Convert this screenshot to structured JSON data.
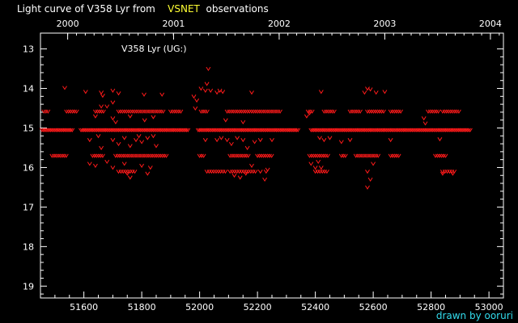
{
  "title": {
    "prefix": "Light curve of V358 Lyr from",
    "highlight": "VSNET",
    "suffix": "observations",
    "highlight_color": "#ffff33"
  },
  "credit": "drawn by ooruri",
  "chart_data": {
    "type": "scatter",
    "marker": "v",
    "point_color": "#ff1a1a",
    "annotation": "V358 Lyr (UG:)",
    "xlim": [
      51450,
      53050
    ],
    "ylim": [
      19.3,
      12.6
    ],
    "y_inverted": true,
    "grid": false,
    "x_ticks": [
      51600,
      51800,
      52000,
      52200,
      52400,
      52600,
      52800,
      53000
    ],
    "y_ticks": [
      13,
      14,
      15,
      16,
      17,
      18,
      19
    ],
    "top_axis": {
      "label_ticks": [
        {
          "label": "2000",
          "x": 51544
        },
        {
          "label": "2001",
          "x": 51910
        },
        {
          "label": "2002",
          "x": 52275
        },
        {
          "label": "2003",
          "x": 52640
        },
        {
          "label": "2004",
          "x": 53005
        }
      ]
    },
    "bands": [
      {
        "y": 15.05,
        "ranges": [
          [
            51455,
            51560
          ],
          [
            51590,
            51960
          ],
          [
            51995,
            52340
          ],
          [
            52385,
            52935
          ]
        ],
        "step": 5
      },
      {
        "y": 14.58,
        "ranges": [
          [
            51462,
            51478
          ],
          [
            51540,
            51580
          ],
          [
            51640,
            51670
          ],
          [
            51720,
            51880
          ],
          [
            51900,
            51935
          ],
          [
            52005,
            52030
          ],
          [
            52095,
            52175
          ],
          [
            52180,
            52280
          ],
          [
            52375,
            52395
          ],
          [
            52430,
            52465
          ],
          [
            52520,
            52560
          ],
          [
            52580,
            52640
          ],
          [
            52660,
            52700
          ],
          [
            52790,
            52830
          ],
          [
            52840,
            52900
          ]
        ],
        "step": 7
      },
      {
        "y": 15.7,
        "ranges": [
          [
            51490,
            51545
          ],
          [
            51630,
            51670
          ],
          [
            51710,
            51890
          ],
          [
            52000,
            52020
          ],
          [
            52105,
            52170
          ],
          [
            52200,
            52250
          ],
          [
            52380,
            52445
          ],
          [
            52490,
            52510
          ],
          [
            52540,
            52620
          ],
          [
            52660,
            52690
          ],
          [
            52815,
            52850
          ]
        ],
        "step": 7
      },
      {
        "y": 16.1,
        "ranges": [
          [
            51720,
            51780
          ],
          [
            52025,
            52090
          ],
          [
            52105,
            52200
          ],
          [
            52400,
            52445
          ],
          [
            52840,
            52880
          ]
        ],
        "step": 8
      }
    ],
    "points": [
      {
        "x": 51534,
        "y": 13.98
      },
      {
        "x": 51606,
        "y": 14.08
      },
      {
        "x": 51660,
        "y": 14.1
      },
      {
        "x": 51665,
        "y": 14.18
      },
      {
        "x": 51700,
        "y": 14.05
      },
      {
        "x": 51720,
        "y": 14.12
      },
      {
        "x": 51808,
        "y": 14.15
      },
      {
        "x": 51870,
        "y": 14.15
      },
      {
        "x": 51660,
        "y": 14.45
      },
      {
        "x": 51680,
        "y": 14.45
      },
      {
        "x": 51700,
        "y": 14.35
      },
      {
        "x": 51990,
        "y": 14.3
      },
      {
        "x": 52005,
        "y": 14.0
      },
      {
        "x": 52020,
        "y": 14.05
      },
      {
        "x": 52025,
        "y": 13.88
      },
      {
        "x": 52030,
        "y": 13.5
      },
      {
        "x": 52038,
        "y": 14.05
      },
      {
        "x": 52060,
        "y": 14.1
      },
      {
        "x": 52070,
        "y": 14.05
      },
      {
        "x": 52080,
        "y": 14.08
      },
      {
        "x": 51640,
        "y": 14.7
      },
      {
        "x": 51700,
        "y": 14.75
      },
      {
        "x": 51710,
        "y": 14.85
      },
      {
        "x": 51760,
        "y": 14.7
      },
      {
        "x": 51810,
        "y": 14.8
      },
      {
        "x": 51840,
        "y": 14.72
      },
      {
        "x": 51980,
        "y": 14.2
      },
      {
        "x": 51985,
        "y": 14.5
      },
      {
        "x": 52090,
        "y": 14.8
      },
      {
        "x": 52150,
        "y": 14.85
      },
      {
        "x": 52370,
        "y": 14.7
      },
      {
        "x": 52380,
        "y": 14.62
      },
      {
        "x": 52570,
        "y": 14.1
      },
      {
        "x": 52580,
        "y": 14.0
      },
      {
        "x": 52590,
        "y": 14.02
      },
      {
        "x": 52610,
        "y": 14.1
      },
      {
        "x": 52640,
        "y": 14.08
      },
      {
        "x": 52420,
        "y": 14.08
      },
      {
        "x": 52180,
        "y": 14.1
      },
      {
        "x": 52775,
        "y": 14.75
      },
      {
        "x": 52780,
        "y": 14.88
      },
      {
        "x": 51620,
        "y": 15.3
      },
      {
        "x": 51650,
        "y": 15.2
      },
      {
        "x": 51660,
        "y": 15.5
      },
      {
        "x": 51700,
        "y": 15.3
      },
      {
        "x": 51720,
        "y": 15.4
      },
      {
        "x": 51740,
        "y": 15.25
      },
      {
        "x": 51760,
        "y": 15.45
      },
      {
        "x": 51780,
        "y": 15.3
      },
      {
        "x": 51790,
        "y": 15.2
      },
      {
        "x": 51800,
        "y": 15.35
      },
      {
        "x": 51820,
        "y": 15.25
      },
      {
        "x": 51840,
        "y": 15.2
      },
      {
        "x": 51850,
        "y": 15.45
      },
      {
        "x": 52020,
        "y": 15.3
      },
      {
        "x": 52060,
        "y": 15.3
      },
      {
        "x": 52075,
        "y": 15.25
      },
      {
        "x": 52095,
        "y": 15.3
      },
      {
        "x": 52110,
        "y": 15.4
      },
      {
        "x": 52130,
        "y": 15.25
      },
      {
        "x": 52150,
        "y": 15.3
      },
      {
        "x": 52165,
        "y": 15.5
      },
      {
        "x": 52190,
        "y": 15.35
      },
      {
        "x": 52210,
        "y": 15.3
      },
      {
        "x": 52250,
        "y": 15.3
      },
      {
        "x": 52415,
        "y": 15.25
      },
      {
        "x": 52430,
        "y": 15.3
      },
      {
        "x": 52450,
        "y": 15.25
      },
      {
        "x": 52490,
        "y": 15.35
      },
      {
        "x": 52520,
        "y": 15.3
      },
      {
        "x": 52660,
        "y": 15.3
      },
      {
        "x": 52830,
        "y": 15.28
      },
      {
        "x": 51620,
        "y": 15.9
      },
      {
        "x": 51640,
        "y": 15.95
      },
      {
        "x": 51680,
        "y": 15.85
      },
      {
        "x": 51700,
        "y": 16.0
      },
      {
        "x": 51740,
        "y": 15.9
      },
      {
        "x": 51750,
        "y": 16.15
      },
      {
        "x": 51760,
        "y": 16.25
      },
      {
        "x": 51800,
        "y": 15.95
      },
      {
        "x": 51820,
        "y": 16.15
      },
      {
        "x": 51830,
        "y": 16.0
      },
      {
        "x": 52120,
        "y": 16.2
      },
      {
        "x": 52140,
        "y": 16.25
      },
      {
        "x": 52160,
        "y": 16.15
      },
      {
        "x": 52180,
        "y": 15.95
      },
      {
        "x": 52210,
        "y": 16.1
      },
      {
        "x": 52225,
        "y": 16.3
      },
      {
        "x": 52230,
        "y": 16.1
      },
      {
        "x": 52235,
        "y": 16.05
      },
      {
        "x": 52385,
        "y": 15.9
      },
      {
        "x": 52400,
        "y": 16.0
      },
      {
        "x": 52410,
        "y": 15.85
      },
      {
        "x": 52420,
        "y": 16.0
      },
      {
        "x": 52580,
        "y": 16.1
      },
      {
        "x": 52580,
        "y": 16.5
      },
      {
        "x": 52590,
        "y": 16.3
      },
      {
        "x": 52840,
        "y": 16.15
      },
      {
        "x": 52875,
        "y": 16.15
      },
      {
        "x": 52600,
        "y": 15.9
      }
    ]
  }
}
